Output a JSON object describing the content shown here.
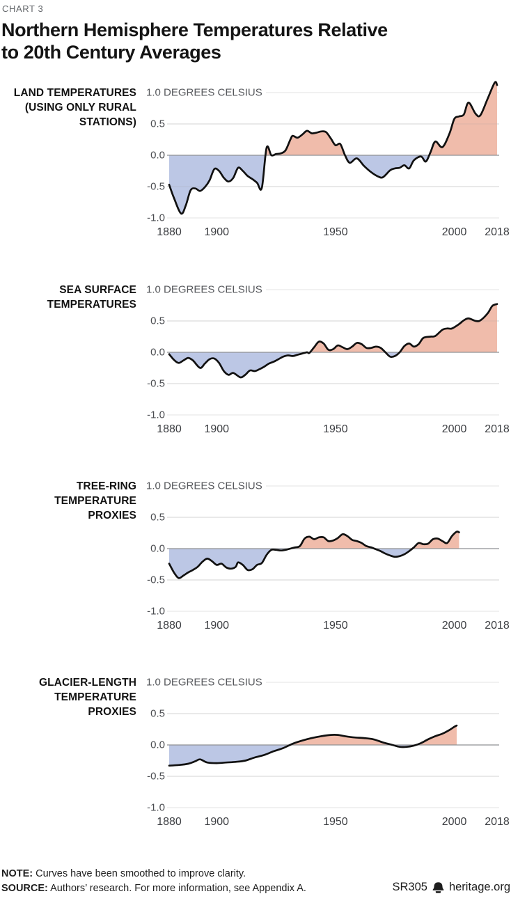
{
  "page": {
    "kicker": "CHART 3",
    "title_line1": "Northern Hemisphere Temperatures Relative",
    "title_line2": "to 20th Century Averages"
  },
  "colors": {
    "positive_fill": "#f0bcab",
    "negative_fill": "#bcc7e5",
    "line": "#111111",
    "gridline": "#e3e3e3",
    "zero_line": "#8f9194"
  },
  "footer": {
    "note_label": "NOTE:",
    "note_text": "Curves have been smoothed to improve clarity.",
    "source_label": "SOURCE:",
    "source_text": "Authors’ research. For more information, see Appendix A.",
    "report_id": "SR305",
    "brand": "heritage.org",
    "brand_icon": "liberty-bell-icon"
  },
  "chart_data": [
    {
      "type": "area",
      "name": "land-temperatures",
      "label_lines": [
        "LAND TEMPERATURES",
        "(USING ONLY RURAL",
        "STATIONS)"
      ],
      "unit_label": "1.0 DEGREES CELSIUS",
      "ylabel": "degrees Celsius",
      "ylim": [
        -1.0,
        1.2
      ],
      "xlim": [
        1880,
        2018
      ],
      "grid": true,
      "y_tick_values": [
        0.5,
        0.0,
        -0.5,
        -1.0
      ],
      "y_tick_labels": [
        "0.5",
        "0.0",
        "-0.5",
        "-1.0"
      ],
      "x_tick_values": [
        1880,
        1900,
        1950,
        2000,
        2018
      ],
      "x_tick_labels": [
        "1880",
        "1900",
        "1950",
        "2000",
        "2018"
      ],
      "points": [
        [
          1880,
          -0.47
        ],
        [
          1882,
          -0.68
        ],
        [
          1885,
          -0.93
        ],
        [
          1887,
          -0.8
        ],
        [
          1889,
          -0.56
        ],
        [
          1891,
          -0.53
        ],
        [
          1893,
          -0.57
        ],
        [
          1895,
          -0.51
        ],
        [
          1897,
          -0.4
        ],
        [
          1899,
          -0.22
        ],
        [
          1901,
          -0.25
        ],
        [
          1903,
          -0.36
        ],
        [
          1905,
          -0.42
        ],
        [
          1907,
          -0.36
        ],
        [
          1909,
          -0.2
        ],
        [
          1911,
          -0.25
        ],
        [
          1913,
          -0.33
        ],
        [
          1915,
          -0.38
        ],
        [
          1917,
          -0.44
        ],
        [
          1919,
          -0.52
        ],
        [
          1921,
          0.12
        ],
        [
          1923,
          0.0
        ],
        [
          1925,
          0.02
        ],
        [
          1927,
          0.03
        ],
        [
          1929,
          0.08
        ],
        [
          1931,
          0.25
        ],
        [
          1932,
          0.31
        ],
        [
          1934,
          0.28
        ],
        [
          1936,
          0.33
        ],
        [
          1938,
          0.39
        ],
        [
          1940,
          0.35
        ],
        [
          1942,
          0.36
        ],
        [
          1944,
          0.38
        ],
        [
          1946,
          0.37
        ],
        [
          1948,
          0.27
        ],
        [
          1950,
          0.16
        ],
        [
          1952,
          0.18
        ],
        [
          1954,
          0.0
        ],
        [
          1956,
          -0.12
        ],
        [
          1959,
          -0.05
        ],
        [
          1962,
          -0.17
        ],
        [
          1965,
          -0.27
        ],
        [
          1968,
          -0.34
        ],
        [
          1970,
          -0.35
        ],
        [
          1973,
          -0.24
        ],
        [
          1975,
          -0.21
        ],
        [
          1977,
          -0.2
        ],
        [
          1979,
          -0.16
        ],
        [
          1981,
          -0.21
        ],
        [
          1983,
          -0.08
        ],
        [
          1986,
          -0.02
        ],
        [
          1988,
          -0.1
        ],
        [
          1990,
          0.05
        ],
        [
          1992,
          0.22
        ],
        [
          1995,
          0.13
        ],
        [
          1998,
          0.35
        ],
        [
          2000,
          0.58
        ],
        [
          2002,
          0.62
        ],
        [
          2004,
          0.65
        ],
        [
          2006,
          0.84
        ],
        [
          2009,
          0.66
        ],
        [
          2011,
          0.64
        ],
        [
          2014,
          0.9
        ],
        [
          2017,
          1.16
        ],
        [
          2018,
          1.12
        ]
      ]
    },
    {
      "type": "area",
      "name": "sea-surface-temperatures",
      "label_lines": [
        "SEA SURFACE",
        "TEMPERATURES"
      ],
      "unit_label": "1.0 DEGREES CELSIUS",
      "ylabel": "degrees Celsius",
      "ylim": [
        -1.0,
        1.2
      ],
      "xlim": [
        1880,
        2018
      ],
      "grid": true,
      "y_tick_values": [
        0.5,
        0.0,
        -0.5,
        -1.0
      ],
      "y_tick_labels": [
        "0.5",
        "0.0",
        "-0.5",
        "-1.0"
      ],
      "x_tick_values": [
        1880,
        1900,
        1950,
        2000,
        2018
      ],
      "x_tick_labels": [
        "1880",
        "1900",
        "1950",
        "2000",
        "2018"
      ],
      "points": [
        [
          1880,
          -0.03
        ],
        [
          1882,
          -0.12
        ],
        [
          1884,
          -0.17
        ],
        [
          1886,
          -0.13
        ],
        [
          1888,
          -0.09
        ],
        [
          1890,
          -0.13
        ],
        [
          1893,
          -0.25
        ],
        [
          1895,
          -0.18
        ],
        [
          1897,
          -0.11
        ],
        [
          1899,
          -0.1
        ],
        [
          1901,
          -0.17
        ],
        [
          1903,
          -0.3
        ],
        [
          1905,
          -0.36
        ],
        [
          1907,
          -0.33
        ],
        [
          1910,
          -0.4
        ],
        [
          1912,
          -0.36
        ],
        [
          1914,
          -0.29
        ],
        [
          1916,
          -0.3
        ],
        [
          1918,
          -0.27
        ],
        [
          1920,
          -0.23
        ],
        [
          1922,
          -0.18
        ],
        [
          1924,
          -0.15
        ],
        [
          1926,
          -0.11
        ],
        [
          1928,
          -0.07
        ],
        [
          1930,
          -0.05
        ],
        [
          1932,
          -0.06
        ],
        [
          1934,
          -0.04
        ],
        [
          1936,
          -0.02
        ],
        [
          1938,
          0.0
        ],
        [
          1939,
          -0.01
        ],
        [
          1941,
          0.08
        ],
        [
          1943,
          0.17
        ],
        [
          1945,
          0.14
        ],
        [
          1947,
          0.04
        ],
        [
          1949,
          0.05
        ],
        [
          1951,
          0.11
        ],
        [
          1953,
          0.08
        ],
        [
          1955,
          0.05
        ],
        [
          1957,
          0.09
        ],
        [
          1959,
          0.15
        ],
        [
          1961,
          0.13
        ],
        [
          1963,
          0.07
        ],
        [
          1965,
          0.07
        ],
        [
          1967,
          0.09
        ],
        [
          1969,
          0.07
        ],
        [
          1971,
          0.0
        ],
        [
          1973,
          -0.07
        ],
        [
          1975,
          -0.06
        ],
        [
          1977,
          0.0
        ],
        [
          1979,
          0.1
        ],
        [
          1981,
          0.14
        ],
        [
          1983,
          0.09
        ],
        [
          1985,
          0.13
        ],
        [
          1987,
          0.23
        ],
        [
          1990,
          0.25
        ],
        [
          1992,
          0.26
        ],
        [
          1995,
          0.36
        ],
        [
          1997,
          0.38
        ],
        [
          1999,
          0.38
        ],
        [
          2002,
          0.45
        ],
        [
          2004,
          0.51
        ],
        [
          2006,
          0.54
        ],
        [
          2009,
          0.5
        ],
        [
          2011,
          0.51
        ],
        [
          2014,
          0.62
        ],
        [
          2016,
          0.74
        ],
        [
          2018,
          0.77
        ]
      ]
    },
    {
      "type": "area",
      "name": "tree-ring-temperature-proxies",
      "label_lines": [
        "TREE-RING",
        "TEMPERATURE",
        "PROXIES"
      ],
      "unit_label": "1.0 DEGREES CELSIUS",
      "ylabel": "degrees Celsius",
      "ylim": [
        -1.0,
        1.2
      ],
      "xlim": [
        1880,
        2018
      ],
      "grid": true,
      "y_tick_values": [
        0.5,
        0.0,
        -0.5,
        -1.0
      ],
      "y_tick_labels": [
        "0.5",
        "0.0",
        "-0.5",
        "-1.0"
      ],
      "x_tick_values": [
        1880,
        1900,
        1950,
        2000,
        2018
      ],
      "x_tick_labels": [
        "1880",
        "1900",
        "1950",
        "2000",
        "2018"
      ],
      "points": [
        [
          1880,
          -0.24
        ],
        [
          1882,
          -0.38
        ],
        [
          1884,
          -0.47
        ],
        [
          1886,
          -0.43
        ],
        [
          1888,
          -0.38
        ],
        [
          1890,
          -0.34
        ],
        [
          1892,
          -0.29
        ],
        [
          1894,
          -0.21
        ],
        [
          1896,
          -0.16
        ],
        [
          1898,
          -0.2
        ],
        [
          1900,
          -0.26
        ],
        [
          1902,
          -0.24
        ],
        [
          1904,
          -0.3
        ],
        [
          1906,
          -0.32
        ],
        [
          1908,
          -0.29
        ],
        [
          1909,
          -0.22
        ],
        [
          1911,
          -0.26
        ],
        [
          1913,
          -0.34
        ],
        [
          1915,
          -0.33
        ],
        [
          1917,
          -0.26
        ],
        [
          1919,
          -0.23
        ],
        [
          1921,
          -0.1
        ],
        [
          1923,
          -0.02
        ],
        [
          1925,
          -0.02
        ],
        [
          1927,
          -0.03
        ],
        [
          1929,
          -0.02
        ],
        [
          1931,
          0.0
        ],
        [
          1933,
          0.02
        ],
        [
          1935,
          0.04
        ],
        [
          1937,
          0.16
        ],
        [
          1939,
          0.19
        ],
        [
          1941,
          0.15
        ],
        [
          1943,
          0.18
        ],
        [
          1945,
          0.18
        ],
        [
          1947,
          0.12
        ],
        [
          1949,
          0.13
        ],
        [
          1951,
          0.17
        ],
        [
          1953,
          0.23
        ],
        [
          1955,
          0.2
        ],
        [
          1957,
          0.14
        ],
        [
          1959,
          0.12
        ],
        [
          1961,
          0.09
        ],
        [
          1963,
          0.04
        ],
        [
          1965,
          0.02
        ],
        [
          1967,
          -0.01
        ],
        [
          1969,
          -0.04
        ],
        [
          1971,
          -0.08
        ],
        [
          1973,
          -0.11
        ],
        [
          1975,
          -0.13
        ],
        [
          1977,
          -0.12
        ],
        [
          1979,
          -0.09
        ],
        [
          1981,
          -0.04
        ],
        [
          1983,
          0.02
        ],
        [
          1985,
          0.09
        ],
        [
          1987,
          0.07
        ],
        [
          1989,
          0.08
        ],
        [
          1991,
          0.15
        ],
        [
          1993,
          0.16
        ],
        [
          1995,
          0.12
        ],
        [
          1997,
          0.09
        ],
        [
          1999,
          0.2
        ],
        [
          2001,
          0.27
        ],
        [
          2002,
          0.26
        ]
      ]
    },
    {
      "type": "area",
      "name": "glacier-length-temperature-proxies",
      "label_lines": [
        "GLACIER-LENGTH",
        "TEMPERATURE",
        "PROXIES"
      ],
      "unit_label": "1.0 DEGREES CELSIUS",
      "ylabel": "degrees Celsius",
      "ylim": [
        -1.0,
        1.2
      ],
      "xlim": [
        1880,
        2018
      ],
      "grid": true,
      "y_tick_values": [
        0.5,
        0.0,
        -0.5,
        -1.0
      ],
      "y_tick_labels": [
        "0.5",
        "0.0",
        "-0.5",
        "-1.0"
      ],
      "x_tick_values": [
        1880,
        1900,
        1950,
        2000,
        2018
      ],
      "x_tick_labels": [
        "1880",
        "1900",
        "1950",
        "2000",
        "2018"
      ],
      "points": [
        [
          1880,
          -0.33
        ],
        [
          1884,
          -0.32
        ],
        [
          1888,
          -0.3
        ],
        [
          1891,
          -0.26
        ],
        [
          1893,
          -0.23
        ],
        [
          1896,
          -0.28
        ],
        [
          1900,
          -0.29
        ],
        [
          1904,
          -0.28
        ],
        [
          1908,
          -0.27
        ],
        [
          1912,
          -0.25
        ],
        [
          1916,
          -0.2
        ],
        [
          1920,
          -0.16
        ],
        [
          1924,
          -0.1
        ],
        [
          1928,
          -0.05
        ],
        [
          1932,
          0.02
        ],
        [
          1936,
          0.07
        ],
        [
          1940,
          0.11
        ],
        [
          1944,
          0.14
        ],
        [
          1948,
          0.16
        ],
        [
          1951,
          0.16
        ],
        [
          1954,
          0.14
        ],
        [
          1958,
          0.12
        ],
        [
          1962,
          0.11
        ],
        [
          1966,
          0.09
        ],
        [
          1970,
          0.04
        ],
        [
          1974,
          0.0
        ],
        [
          1977,
          -0.03
        ],
        [
          1980,
          -0.03
        ],
        [
          1983,
          -0.01
        ],
        [
          1986,
          0.03
        ],
        [
          1989,
          0.09
        ],
        [
          1992,
          0.14
        ],
        [
          1995,
          0.18
        ],
        [
          1998,
          0.24
        ],
        [
          2000,
          0.29
        ],
        [
          2001,
          0.31
        ]
      ]
    }
  ]
}
